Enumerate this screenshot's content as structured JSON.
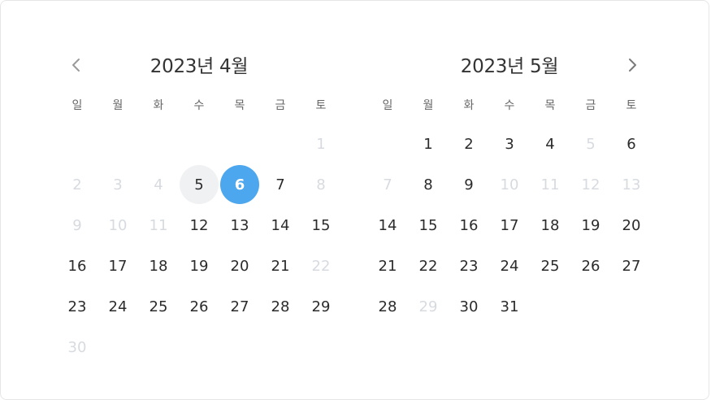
{
  "nav": {
    "prev_icon": "chevron-left-icon",
    "next_icon": "chevron-right-icon"
  },
  "colors": {
    "selected": "#4ca7ee",
    "hover": "#f0f1f3",
    "disabled_text": "#d7dbe0",
    "text": "#2b2b2b"
  },
  "weekdays": [
    "일",
    "월",
    "화",
    "수",
    "목",
    "금",
    "토"
  ],
  "months": [
    {
      "title": "2023년 4월",
      "days": [
        {
          "label": "",
          "state": "empty"
        },
        {
          "label": "",
          "state": "empty"
        },
        {
          "label": "",
          "state": "empty"
        },
        {
          "label": "",
          "state": "empty"
        },
        {
          "label": "",
          "state": "empty"
        },
        {
          "label": "",
          "state": "empty"
        },
        {
          "label": "1",
          "state": "disabled"
        },
        {
          "label": "2",
          "state": "disabled"
        },
        {
          "label": "3",
          "state": "disabled"
        },
        {
          "label": "4",
          "state": "disabled"
        },
        {
          "label": "5",
          "state": "hover"
        },
        {
          "label": "6",
          "state": "selected"
        },
        {
          "label": "7",
          "state": "normal"
        },
        {
          "label": "8",
          "state": "disabled"
        },
        {
          "label": "9",
          "state": "disabled"
        },
        {
          "label": "10",
          "state": "disabled"
        },
        {
          "label": "11",
          "state": "disabled"
        },
        {
          "label": "12",
          "state": "normal"
        },
        {
          "label": "13",
          "state": "normal"
        },
        {
          "label": "14",
          "state": "normal"
        },
        {
          "label": "15",
          "state": "normal"
        },
        {
          "label": "16",
          "state": "normal"
        },
        {
          "label": "17",
          "state": "normal"
        },
        {
          "label": "18",
          "state": "normal"
        },
        {
          "label": "19",
          "state": "normal"
        },
        {
          "label": "20",
          "state": "normal"
        },
        {
          "label": "21",
          "state": "normal"
        },
        {
          "label": "22",
          "state": "disabled"
        },
        {
          "label": "23",
          "state": "normal"
        },
        {
          "label": "24",
          "state": "normal"
        },
        {
          "label": "25",
          "state": "normal"
        },
        {
          "label": "26",
          "state": "normal"
        },
        {
          "label": "27",
          "state": "normal"
        },
        {
          "label": "28",
          "state": "normal"
        },
        {
          "label": "29",
          "state": "normal"
        },
        {
          "label": "30",
          "state": "disabled"
        }
      ]
    },
    {
      "title": "2023년 5월",
      "days": [
        {
          "label": "",
          "state": "empty"
        },
        {
          "label": "1",
          "state": "normal"
        },
        {
          "label": "2",
          "state": "normal"
        },
        {
          "label": "3",
          "state": "normal"
        },
        {
          "label": "4",
          "state": "normal"
        },
        {
          "label": "5",
          "state": "disabled"
        },
        {
          "label": "6",
          "state": "normal"
        },
        {
          "label": "7",
          "state": "disabled"
        },
        {
          "label": "8",
          "state": "normal"
        },
        {
          "label": "9",
          "state": "normal"
        },
        {
          "label": "10",
          "state": "disabled"
        },
        {
          "label": "11",
          "state": "disabled"
        },
        {
          "label": "12",
          "state": "disabled"
        },
        {
          "label": "13",
          "state": "disabled"
        },
        {
          "label": "14",
          "state": "normal"
        },
        {
          "label": "15",
          "state": "normal"
        },
        {
          "label": "16",
          "state": "normal"
        },
        {
          "label": "17",
          "state": "normal"
        },
        {
          "label": "18",
          "state": "normal"
        },
        {
          "label": "19",
          "state": "normal"
        },
        {
          "label": "20",
          "state": "normal"
        },
        {
          "label": "21",
          "state": "normal"
        },
        {
          "label": "22",
          "state": "normal"
        },
        {
          "label": "23",
          "state": "normal"
        },
        {
          "label": "24",
          "state": "normal"
        },
        {
          "label": "25",
          "state": "normal"
        },
        {
          "label": "26",
          "state": "normal"
        },
        {
          "label": "27",
          "state": "normal"
        },
        {
          "label": "28",
          "state": "normal"
        },
        {
          "label": "29",
          "state": "disabled"
        },
        {
          "label": "30",
          "state": "normal"
        },
        {
          "label": "31",
          "state": "normal"
        }
      ]
    }
  ]
}
